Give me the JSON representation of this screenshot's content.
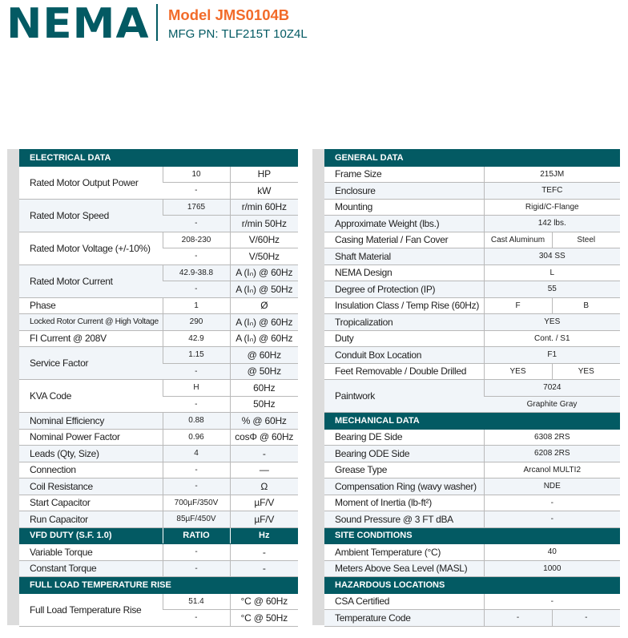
{
  "header": {
    "logo": "NEMA",
    "model": "Model JMS0104B",
    "mfg_pn": "MFG PN: TLF215T 10Z4L"
  },
  "colors": {
    "brand_teal": "#035a63",
    "accent_orange": "#f26b2a"
  },
  "left_sections": [
    {
      "title": [
        "ELECTRICAL DATA"
      ],
      "rows": [
        {
          "label": "Rated Motor Output Power",
          "cells": [
            [
              "10",
              "HP"
            ],
            [
              "-",
              "kW"
            ]
          ]
        },
        {
          "label": "Rated Motor Speed",
          "cells": [
            [
              "1765",
              "r/min 60Hz"
            ],
            [
              "-",
              "r/min 50Hz"
            ]
          ]
        },
        {
          "label": "Rated Motor Voltage (+/-10%)",
          "cells": [
            [
              "208-230",
              "V/60Hz"
            ],
            [
              "-",
              "V/50Hz"
            ]
          ]
        },
        {
          "label": "Rated Motor Current",
          "cells": [
            [
              "42.9-38.8",
              "A (Iₙ) @ 60Hz"
            ],
            [
              "-",
              "A (Iₙ) @ 50Hz"
            ]
          ]
        },
        {
          "label": "Phase",
          "cells": [
            [
              "1",
              "Ø"
            ]
          ]
        },
        {
          "label": "Locked Rotor Current @ High Voltage",
          "cells": [
            [
              "290",
              "A (Iₙ) @ 60Hz"
            ]
          ]
        },
        {
          "label": "FI Current @ 208V",
          "cells": [
            [
              "42.9",
              "A (Iₙ) @ 60Hz"
            ]
          ]
        },
        {
          "label": "Service Factor",
          "cells": [
            [
              "1.15",
              "@ 60Hz"
            ],
            [
              "-",
              "@ 50Hz"
            ]
          ]
        },
        {
          "label": "KVA Code",
          "cells": [
            [
              "H",
              "60Hz"
            ],
            [
              "-",
              "50Hz"
            ]
          ]
        },
        {
          "label": "Nominal Efficiency",
          "cells": [
            [
              "0.88",
              "% @ 60Hz"
            ]
          ]
        },
        {
          "label": "Nominal Power Factor",
          "cells": [
            [
              "0.96",
              "cosΦ @ 60Hz"
            ]
          ]
        },
        {
          "label": "Leads (Qty, Size)",
          "cells": [
            [
              "4",
              "-"
            ]
          ]
        },
        {
          "label": "Connection",
          "cells": [
            [
              "-",
              "—"
            ]
          ]
        },
        {
          "label": "Coil Resistance",
          "cells": [
            [
              "-",
              "Ω"
            ]
          ]
        },
        {
          "label": "Start Capacitor",
          "cells": [
            [
              "700µF/350V",
              "µF/V"
            ]
          ]
        },
        {
          "label": "Run Capacitor",
          "cells": [
            [
              "85µF/450V",
              "µF/V"
            ]
          ]
        }
      ]
    },
    {
      "title": [
        "VFD DUTY (S.F. 1.0)",
        "RATIO",
        "Hz"
      ],
      "rows": [
        {
          "label": "Variable Torque",
          "cells": [
            [
              "-",
              "-"
            ]
          ]
        },
        {
          "label": "Constant Torque",
          "cells": [
            [
              "-",
              "-"
            ]
          ]
        }
      ]
    },
    {
      "title": [
        "FULL LOAD TEMPERATURE RISE"
      ],
      "rows": [
        {
          "label": "Full Load Temperature Rise",
          "cells": [
            [
              "51.4",
              "°C @ 60Hz"
            ],
            [
              "-",
              "°C @ 50Hz"
            ]
          ]
        }
      ]
    }
  ],
  "right_sections": [
    {
      "title": [
        "GENERAL DATA"
      ],
      "rows": [
        {
          "label": "Frame Size",
          "cells": [
            [
              "215JM"
            ]
          ]
        },
        {
          "label": "Enclosure",
          "cells": [
            [
              "TEFC"
            ]
          ]
        },
        {
          "label": "Mounting",
          "cells": [
            [
              "Rigid/C-Flange"
            ]
          ]
        },
        {
          "label": "Approximate Weight (lbs.)",
          "cells": [
            [
              "142 lbs."
            ]
          ]
        },
        {
          "label": "Casing Material / Fan Cover",
          "cells": [
            [
              "Cast Aluminum",
              "Steel"
            ]
          ]
        },
        {
          "label": "Shaft Material",
          "cells": [
            [
              "304 SS"
            ]
          ]
        },
        {
          "label": "NEMA Design",
          "cells": [
            [
              "L"
            ]
          ]
        },
        {
          "label": "Degree of Protection (IP)",
          "cells": [
            [
              "55"
            ]
          ]
        },
        {
          "label": "Insulation Class / Temp Rise (60Hz)",
          "cells": [
            [
              "F",
              "B"
            ]
          ]
        },
        {
          "label": "Tropicalization",
          "cells": [
            [
              "YES"
            ]
          ]
        },
        {
          "label": "Duty",
          "cells": [
            [
              "Cont. / S1"
            ]
          ]
        },
        {
          "label": "Conduit Box Location",
          "cells": [
            [
              "F1"
            ]
          ]
        },
        {
          "label": "Feet Removable / Double Drilled",
          "cells": [
            [
              "YES",
              "YES"
            ]
          ]
        },
        {
          "label": "Paintwork",
          "cells": [
            [
              "7024"
            ],
            [
              "Graphite Gray"
            ]
          ]
        }
      ]
    },
    {
      "title": [
        "MECHANICAL DATA"
      ],
      "rows": [
        {
          "label": "Bearing DE Side",
          "cells": [
            [
              "6308 2RS"
            ]
          ]
        },
        {
          "label": "Bearing ODE Side",
          "cells": [
            [
              "6208 2RS"
            ]
          ]
        },
        {
          "label": "Grease Type",
          "cells": [
            [
              "Arcanol MULTI2"
            ]
          ]
        },
        {
          "label": "Compensation Ring (wavy washer)",
          "cells": [
            [
              "NDE"
            ]
          ]
        },
        {
          "label": "Moment of Inertia (lb-ft²)",
          "cells": [
            [
              "-"
            ]
          ]
        },
        {
          "label": "Sound Pressure @ 3 FT dBA",
          "cells": [
            [
              "-"
            ]
          ]
        }
      ]
    },
    {
      "title": [
        "SITE CONDITIONS"
      ],
      "rows": [
        {
          "label": "Ambient Temperature (°C)",
          "cells": [
            [
              "40"
            ]
          ]
        },
        {
          "label": "Meters Above Sea Level (MASL)",
          "cells": [
            [
              "1000"
            ]
          ]
        }
      ]
    },
    {
      "title": [
        "HAZARDOUS LOCATIONS"
      ],
      "rows": [
        {
          "label": "CSA Certified",
          "cells": [
            [
              "-"
            ]
          ]
        },
        {
          "label": "Temperature Code",
          "cells": [
            [
              "-",
              "-"
            ]
          ]
        }
      ]
    }
  ]
}
